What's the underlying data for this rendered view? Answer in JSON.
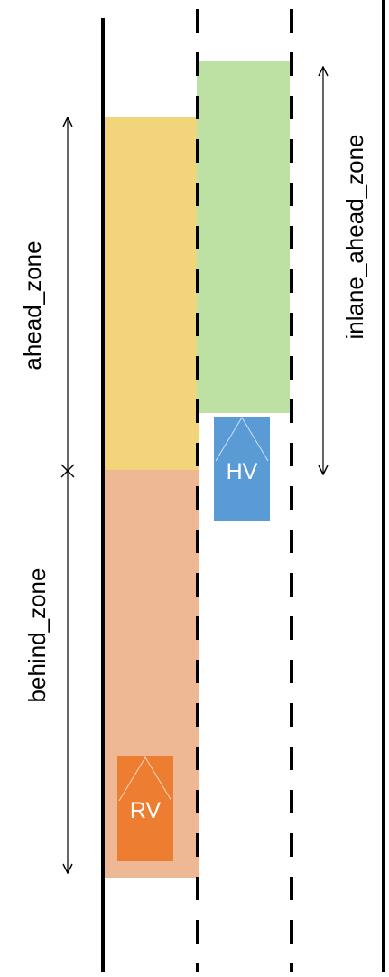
{
  "zones": {
    "ahead": {
      "label": "ahead_zone",
      "color": "#f2d57a"
    },
    "behind": {
      "label": "behind_zone",
      "color": "#edb893"
    },
    "inlane_ahead": {
      "label": "inlane_ahead_zone",
      "color": "#bde0a3"
    }
  },
  "vehicles": {
    "hv": {
      "label": "HV",
      "color": "#5b9bd5"
    },
    "rv": {
      "label": "RV",
      "color": "#ed7d31"
    }
  },
  "road": {
    "line_color": "#000000"
  }
}
